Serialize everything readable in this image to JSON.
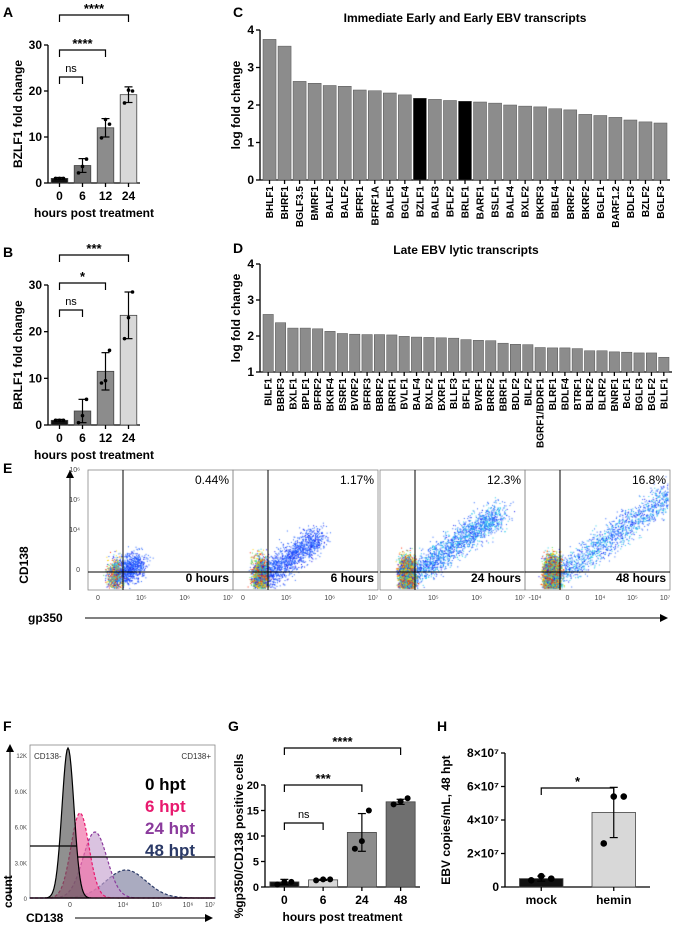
{
  "panel_labels": [
    "A",
    "B",
    "C",
    "D",
    "E",
    "F",
    "G",
    "H"
  ],
  "chart_data": [
    {
      "id": "A",
      "type": "bar",
      "categories": [
        "0",
        "6",
        "12",
        "24"
      ],
      "values": [
        1,
        3.8,
        12,
        19.2
      ],
      "errors": [
        0.2,
        1.5,
        2,
        1.7
      ],
      "points": [
        [
          1,
          1,
          1
        ],
        [
          2.2,
          3.6,
          5.2
        ],
        [
          9.8,
          13.8,
          12.8
        ],
        [
          17.4,
          20.2,
          20
        ]
      ],
      "colors": [
        "#111111",
        "#707070",
        "#8c8c8c",
        "#d8d8d8"
      ],
      "xlabel": "hours post treatment",
      "ylabel": "BZLF1 fold change",
      "ylim": [
        0,
        30
      ],
      "yticks": [
        "0",
        "10",
        "20",
        "30"
      ],
      "sig": [
        {
          "from": 0,
          "to": 1,
          "label": "ns"
        },
        {
          "from": 0,
          "to": 2,
          "label": "****"
        },
        {
          "from": 0,
          "to": 3,
          "label": "****"
        }
      ]
    },
    {
      "id": "B",
      "type": "bar",
      "categories": [
        "0",
        "6",
        "12",
        "24"
      ],
      "values": [
        1,
        3,
        11.5,
        23.5
      ],
      "errors": [
        0.2,
        2.5,
        4,
        5
      ],
      "points": [
        [
          1,
          1,
          1
        ],
        [
          0.5,
          2,
          5.5
        ],
        [
          9,
          9.5,
          16
        ],
        [
          18.5,
          23,
          28.5
        ]
      ],
      "colors": [
        "#111111",
        "#707070",
        "#8c8c8c",
        "#d8d8d8"
      ],
      "xlabel": "hours post treatment",
      "ylabel": "BRLF1 fold change",
      "ylim": [
        0,
        30
      ],
      "yticks": [
        "0",
        "10",
        "20",
        "30"
      ],
      "sig": [
        {
          "from": 0,
          "to": 1,
          "label": "ns"
        },
        {
          "from": 0,
          "to": 2,
          "label": "*"
        },
        {
          "from": 0,
          "to": 3,
          "label": "***"
        }
      ]
    },
    {
      "id": "C",
      "type": "bar",
      "title": "Immediate Early and Early EBV transcripts",
      "ylabel": "log fold change",
      "ylim": [
        0,
        4
      ],
      "yticks": [
        "0",
        "1",
        "2",
        "3",
        "4"
      ],
      "categories": [
        "BHLF1",
        "BHRF1",
        "BGLF3.5",
        "BMRF1",
        "BALF2",
        "BALF2",
        "BFRF1",
        "BFRF1A",
        "BALF5",
        "BGLF4",
        "BZLF1",
        "BALF3",
        "BFLF2",
        "BRLF1",
        "BARF1",
        "BSLF1",
        "BALF4",
        "BXLF2",
        "BKRF3",
        "BBLF4",
        "BRRF2",
        "BKRF2",
        "BGLF1",
        "BARF1.2",
        "BDLF3",
        "BZLF2",
        "BGLF3"
      ],
      "values": [
        3.75,
        3.57,
        2.63,
        2.58,
        2.52,
        2.5,
        2.4,
        2.38,
        2.32,
        2.27,
        2.18,
        2.15,
        2.12,
        2.1,
        2.08,
        2.05,
        2.0,
        1.97,
        1.95,
        1.9,
        1.87,
        1.75,
        1.72,
        1.67,
        1.6,
        1.55,
        1.52
      ],
      "highlight": [
        "BZLF1",
        "BRLF1"
      ],
      "bar_color": "#8c8c8c",
      "highlight_color": "#000000"
    },
    {
      "id": "D",
      "type": "bar",
      "title": "Late EBV lytic transcripts",
      "ylabel": "log fold change",
      "ylim": [
        1,
        4
      ],
      "yticks": [
        "1",
        "2",
        "3",
        "4"
      ],
      "categories": [
        "BILF1",
        "BBRF3",
        "BXLF1",
        "BPLF1",
        "BFRF2",
        "BKRF4",
        "BSRF1",
        "BVRF2",
        "BFRF3",
        "BBRF2",
        "BRRF1",
        "BVLF1",
        "BALF4",
        "BXLF2",
        "BXRF1",
        "BLLF3",
        "BFLF1",
        "BVRF1",
        "BRRF2",
        "BBRF1",
        "BDLF2",
        "BILF2",
        "BGRF1/BDRF1",
        "BLRF1",
        "BDLF4",
        "BTRF1",
        "BLRF2",
        "BLRF2",
        "BNRF1",
        "BcLF1",
        "BGLF3",
        "BGLF2",
        "BLLF1"
      ],
      "values": [
        2.6,
        2.37,
        2.22,
        2.22,
        2.2,
        2.13,
        2.07,
        2.05,
        2.04,
        2.04,
        2.03,
        1.99,
        1.97,
        1.96,
        1.95,
        1.94,
        1.9,
        1.88,
        1.87,
        1.8,
        1.77,
        1.76,
        1.68,
        1.67,
        1.67,
        1.65,
        1.59,
        1.59,
        1.56,
        1.55,
        1.53,
        1.53,
        1.41
      ],
      "bar_color": "#8c8c8c"
    },
    {
      "id": "E",
      "type": "scatter",
      "xlabel": "gp350",
      "ylabel": "CD138",
      "panels": [
        {
          "label": "0 hours",
          "pct": "0.44%",
          "xticks": [
            "0",
            "10⁵",
            "10⁶",
            "10⁷"
          ]
        },
        {
          "label": "6 hours",
          "pct": "1.17%",
          "xticks": [
            "0",
            "10⁵",
            "10⁶",
            "10⁷"
          ]
        },
        {
          "label": "24 hours",
          "pct": "12.3%",
          "xticks": [
            "0",
            "10⁵",
            "10⁶",
            "10⁷"
          ]
        },
        {
          "label": "48 hours",
          "pct": "16.8%",
          "xticks": [
            "-10⁴",
            "0",
            "10⁴",
            "10⁵",
            "10⁷"
          ]
        }
      ],
      "yticks": [
        "0",
        "10⁴",
        "10⁵",
        "10⁶"
      ]
    },
    {
      "id": "F",
      "type": "area",
      "xlabel": "CD138",
      "ylabel": "count",
      "yticks": [
        "0",
        "3.0K",
        "6.0K",
        "9.0K",
        "12K"
      ],
      "xticks": [
        "0",
        "10⁴",
        "10⁵",
        "10⁶",
        "10⁷"
      ],
      "gates": [
        "CD138-",
        "CD138+"
      ],
      "series": [
        {
          "name": "0 hpt",
          "color": "#000000",
          "fill": "#555555"
        },
        {
          "name": "6 hpt",
          "color": "#e8196e",
          "fill": "#f06aa3"
        },
        {
          "name": "24 hpt",
          "color": "#8a3a9c",
          "fill": "#c6a3cf"
        },
        {
          "name": "48 hpt",
          "color": "#2b3a67",
          "fill": "#7d7e9e"
        }
      ]
    },
    {
      "id": "G",
      "type": "bar",
      "categories": [
        "0",
        "6",
        "24",
        "48"
      ],
      "values": [
        1,
        1.4,
        10.7,
        16.7
      ],
      "errors": [
        0.5,
        0.1,
        3.7,
        0.5
      ],
      "points": [
        [
          0.5,
          1,
          1
        ],
        [
          1.3,
          1.5,
          1.5
        ],
        [
          7.5,
          9,
          15
        ],
        [
          16.2,
          16.8,
          17.4
        ]
      ],
      "colors": [
        "#111111",
        "#d8d8d8",
        "#8c8c8c",
        "#707070"
      ],
      "xlabel": "hours post treatment",
      "ylabel": "%gp350/CD138 positive cells",
      "ylim": [
        0,
        20
      ],
      "yticks": [
        "0",
        "5",
        "10",
        "15",
        "20"
      ],
      "sig": [
        {
          "from": 0,
          "to": 1,
          "label": "ns"
        },
        {
          "from": 0,
          "to": 2,
          "label": "***"
        },
        {
          "from": 0,
          "to": 3,
          "label": "****"
        }
      ]
    },
    {
      "id": "H",
      "type": "bar",
      "categories": [
        "mock",
        "hemin"
      ],
      "values": [
        5000000.0,
        44500000.0
      ],
      "errors": [
        1500000.0,
        15000000.0
      ],
      "points": [
        [
          4000000.0,
          6500000.0,
          5000000.0
        ],
        [
          26000000.0,
          54000000.0,
          54000000.0
        ]
      ],
      "colors": [
        "#111111",
        "#d8d8d8"
      ],
      "ylabel": "EBV copies/mL, 48 hpt",
      "ylim": [
        0,
        80000000
      ],
      "yticks": [
        "0",
        "2×10⁷",
        "4×10⁷",
        "6×10⁷",
        "8×10⁷"
      ],
      "sig": [
        {
          "from": 0,
          "to": 1,
          "label": "*"
        }
      ]
    }
  ]
}
